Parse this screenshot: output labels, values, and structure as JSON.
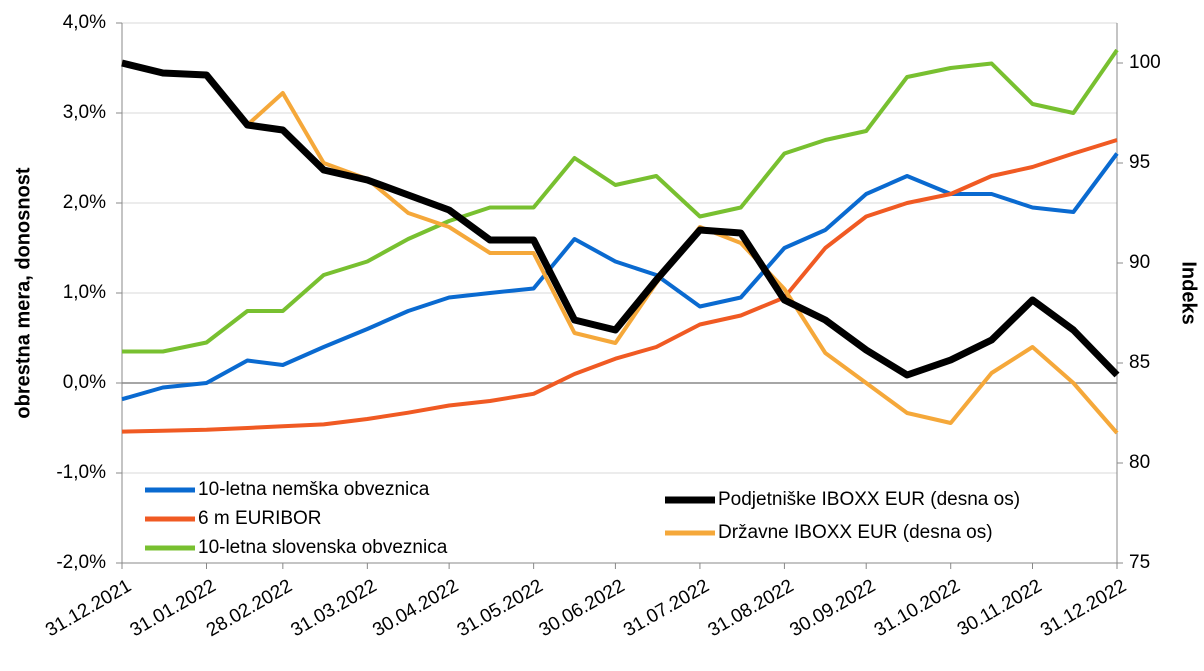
{
  "chart_data": {
    "type": "line",
    "y_label": "obrestna mera, donosnost",
    "y2_label": "Indeks",
    "x": [
      "31.12.2021",
      "15.01.2022",
      "31.01.2022",
      "15.02.2022",
      "28.02.2022",
      "15.03.2022",
      "31.03.2022",
      "15.04.2022",
      "30.04.2022",
      "15.05.2022",
      "31.05.2022",
      "15.06.2022",
      "30.06.2022",
      "15.07.2022",
      "31.07.2022",
      "15.08.2022",
      "31.08.2022",
      "15.09.2022",
      "30.09.2022",
      "15.10.2022",
      "31.10.2022",
      "15.11.2022",
      "30.11.2022",
      "15.12.2022",
      "31.12.2022"
    ],
    "xlim": [
      "31.12.2021",
      "31.12.2022"
    ],
    "xticks": [
      "31.12.2021",
      "31.01.2022",
      "28.02.2022",
      "31.03.2022",
      "30.04.2022",
      "31.05.2022",
      "30.06.2022",
      "31.07.2022",
      "31.08.2022",
      "30.09.2022",
      "31.10.2022",
      "30.11.2022",
      "31.12.2022"
    ],
    "ylim": [
      -2,
      4
    ],
    "yticks": [
      {
        "value": -2,
        "label": "-2,0%"
      },
      {
        "value": -1,
        "label": "-1,0%"
      },
      {
        "value": 0,
        "label": "0,0%"
      },
      {
        "value": 1,
        "label": "1,0%"
      },
      {
        "value": 2,
        "label": "2,0%"
      },
      {
        "value": 3,
        "label": "3,0%"
      },
      {
        "value": 4,
        "label": "4,0%"
      }
    ],
    "y2lim": [
      75,
      102
    ],
    "y2ticks": [
      75,
      80,
      85,
      90,
      95,
      100
    ],
    "grid": true,
    "series": [
      {
        "name": "10-letna nemška obveznica",
        "color": "#0a6ad0",
        "values": [
          -0.18,
          -0.05,
          0.0,
          0.25,
          0.2,
          0.4,
          0.6,
          0.8,
          0.95,
          1.0,
          1.05,
          1.6,
          1.35,
          1.2,
          0.85,
          0.95,
          1.5,
          1.7,
          2.1,
          2.3,
          2.1,
          2.1,
          1.95,
          1.9,
          2.55
        ]
      },
      {
        "name": "6 m EURIBOR",
        "color": "#f05a23",
        "values": [
          -0.54,
          -0.53,
          -0.52,
          -0.5,
          -0.48,
          -0.46,
          -0.4,
          -0.33,
          -0.25,
          -0.2,
          -0.12,
          0.1,
          0.27,
          0.4,
          0.65,
          0.75,
          0.95,
          1.5,
          1.85,
          2.0,
          2.1,
          2.3,
          2.4,
          2.55,
          2.7
        ]
      },
      {
        "name": "10-letna slovenska obveznica",
        "color": "#78c030",
        "values": [
          0.35,
          0.35,
          0.45,
          0.8,
          0.8,
          1.2,
          1.35,
          1.6,
          1.8,
          1.95,
          1.95,
          2.5,
          2.2,
          2.3,
          1.85,
          1.95,
          2.55,
          2.7,
          2.8,
          3.4,
          3.5,
          3.55,
          3.1,
          3.0,
          3.7
        ]
      },
      {
        "name": "Podjetniške IBOXX EUR (desna os)",
        "color": "#000000",
        "axis": "y2",
        "values": [
          100,
          99.5,
          99.4,
          96.9,
          96.65,
          94.65,
          94.15,
          93.4,
          92.65,
          91.15,
          91.15,
          87.15,
          86.65,
          89.15,
          91.65,
          91.5,
          88.15,
          87.15,
          85.65,
          84.4,
          85.15,
          86.15,
          88.15,
          86.65,
          84.4
        ]
      },
      {
        "name": "Državne IBOXX EUR (desna os)",
        "color": "#f5a83a",
        "axis": "y2",
        "values": [
          100,
          99.5,
          99.4,
          96.9,
          98.5,
          95,
          94.2,
          92.5,
          91.8,
          90.5,
          90.5,
          86.5,
          86.0,
          89,
          91.8,
          91,
          88.7,
          85.5,
          84,
          82.5,
          82,
          84.5,
          85.8,
          84,
          81.5
        ]
      }
    ]
  }
}
